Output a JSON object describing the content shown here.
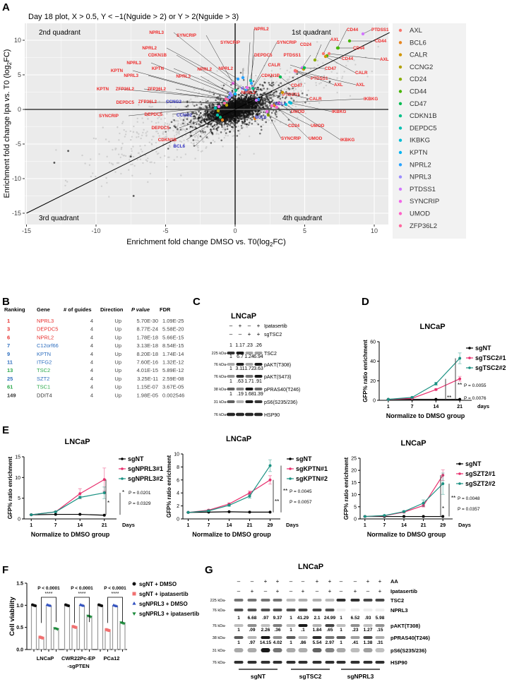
{
  "panel_labels": {
    "a": "A",
    "b": "B",
    "c": "C",
    "d": "D",
    "e": "E",
    "f": "F",
    "g": "G"
  },
  "panel_a": {
    "title": "Day 18 plot, X > 0.5, Y < −1(Nguide > 2) or Y > 2(Nguide > 3)",
    "quadrants": [
      "2nd quadrant",
      "1st quadrant",
      "3rd quadrant",
      "4th quadrant"
    ],
    "xlabel": {
      "main": "Enrichment fold change DMSO vs. T0(log",
      "sub": "2",
      "end": "FC)"
    },
    "ylabel": {
      "main": "Enrichment fold change Ipa vs. T0 (log",
      "sub": "2",
      "end": "FC)"
    },
    "xticks": [
      -15,
      -10,
      -5,
      0,
      5,
      10
    ],
    "yticks": [
      -15,
      -10,
      -5,
      0,
      5,
      10
    ],
    "xlim": [
      -15.1,
      11.1
    ],
    "ylim": [
      -16,
      13
    ],
    "label_colors": {
      "red": "#ee2a2a",
      "blue": "#3636c8"
    },
    "legend": [
      {
        "gene": "AXL",
        "color": "#F8766D"
      },
      {
        "gene": "BCL6",
        "color": "#E7851E"
      },
      {
        "gene": "CALR",
        "color": "#D09400"
      },
      {
        "gene": "CCNG2",
        "color": "#B2A100"
      },
      {
        "gene": "CD24",
        "color": "#89AC00"
      },
      {
        "gene": "CD44",
        "color": "#45B500"
      },
      {
        "gene": "CD47",
        "color": "#00BC51"
      },
      {
        "gene": "CDKN1B",
        "color": "#00C087"
      },
      {
        "gene": "DEPDC5",
        "color": "#00C0B2"
      },
      {
        "gene": "IKBKG",
        "color": "#00BCD6"
      },
      {
        "gene": "KPTN",
        "color": "#00B3F2"
      },
      {
        "gene": "NPRL2",
        "color": "#29A3FF"
      },
      {
        "gene": "NPRL3",
        "color": "#9C8DFF"
      },
      {
        "gene": "PTDSS1",
        "color": "#D277FF"
      },
      {
        "gene": "SYNCRIP",
        "color": "#F166E8"
      },
      {
        "gene": "UMOD",
        "color": "#FF61C7"
      },
      {
        "gene": "ZFP36L2",
        "color": "#FF689E"
      }
    ],
    "annotations": [
      {
        "gene": "NPRL3",
        "label": "red"
      },
      {
        "gene": "SYNCRIP",
        "label": "red"
      },
      {
        "gene": "NPRL2",
        "label": "red"
      },
      {
        "gene": "CDKN1B",
        "label": "red"
      },
      {
        "gene": "NPRL3",
        "label": "red"
      },
      {
        "gene": "KPTN",
        "label": "red"
      },
      {
        "gene": "NPRL2",
        "label": "red"
      },
      {
        "gene": "KPTN",
        "label": "red"
      },
      {
        "gene": "NPRL3",
        "label": "red"
      },
      {
        "gene": "NPRL3",
        "label": "red"
      },
      {
        "gene": "KPTN",
        "label": "red"
      },
      {
        "gene": "ZFP36L2",
        "label": "red"
      },
      {
        "gene": "ZFP36L2",
        "label": "red"
      },
      {
        "gene": "DEPDC5",
        "label": "red"
      },
      {
        "gene": "ZFP36L2",
        "label": "red"
      },
      {
        "gene": "CCNG2",
        "label": "blue"
      },
      {
        "gene": "SYNCRIP",
        "label": "red"
      },
      {
        "gene": "DEPDC5",
        "label": "red"
      },
      {
        "gene": "CCNG2",
        "label": "blue"
      },
      {
        "gene": "DEPDC5",
        "label": "red"
      },
      {
        "gene": "CDKN1B",
        "label": "red"
      },
      {
        "gene": "BCL6",
        "label": "blue"
      },
      {
        "gene": "NPRL2",
        "label": "red"
      },
      {
        "gene": "SYNCRIP",
        "label": "red"
      },
      {
        "gene": "SYNCRIP",
        "label": "red"
      },
      {
        "gene": "DEPDC5",
        "label": "red"
      },
      {
        "gene": "NPRL2",
        "label": "red"
      },
      {
        "gene": "CDKN1B",
        "label": "red"
      },
      {
        "gene": "CD24",
        "label": "red"
      },
      {
        "gene": "CD44",
        "label": "red"
      },
      {
        "gene": "PTDSS1",
        "label": "red"
      },
      {
        "gene": "CD44",
        "label": "red"
      },
      {
        "gene": "CD44",
        "label": "red"
      },
      {
        "gene": "AXL",
        "label": "red"
      },
      {
        "gene": "CD44",
        "label": "red"
      },
      {
        "gene": "AXL",
        "label": "red"
      },
      {
        "gene": "PTDSS1",
        "label": "red"
      },
      {
        "gene": "CALR",
        "label": "red"
      },
      {
        "gene": "CD47",
        "label": "red"
      },
      {
        "gene": "CALR",
        "label": "red"
      },
      {
        "gene": "PTDSS1",
        "label": "red"
      },
      {
        "gene": "CD47",
        "label": "red"
      },
      {
        "gene": "AXL",
        "label": "red"
      },
      {
        "gene": "AXL",
        "label": "red"
      },
      {
        "gene": "NPRL2",
        "label": "red"
      },
      {
        "gene": "PTDSS1",
        "label": "red"
      },
      {
        "gene": "CALR",
        "label": "red"
      },
      {
        "gene": "IKBKG",
        "label": "red"
      },
      {
        "gene": "UMOD",
        "label": "red"
      },
      {
        "gene": "IKBKG",
        "label": "red"
      },
      {
        "gene": "CD24",
        "label": "red"
      },
      {
        "gene": "UMOD",
        "label": "red"
      },
      {
        "gene": "BCL6",
        "label": "blue"
      },
      {
        "gene": "BCL6",
        "label": "blue"
      },
      {
        "gene": "SYNCRIP",
        "label": "red"
      },
      {
        "gene": "UMOD",
        "label": "red"
      },
      {
        "gene": "IKBKG",
        "label": "red"
      }
    ]
  },
  "panel_b": {
    "headers": [
      "Ranking",
      "Gene",
      "# of guides",
      "Direction",
      "P value",
      "FDR"
    ],
    "rows": [
      {
        "rank": "1",
        "gene": "NPRL3",
        "guides": "4",
        "direction": "Up",
        "p": "5.70E-30",
        "fdr": "1.09E-25",
        "color": "#e8302e"
      },
      {
        "rank": "3",
        "gene": "DEPDC5",
        "guides": "4",
        "direction": "Up",
        "p": "8.77E-24",
        "fdr": "5.58E-20",
        "color": "#e8302e"
      },
      {
        "rank": "6",
        "gene": "NPRL2",
        "guides": "4",
        "direction": "Up",
        "p": "1.78E-18",
        "fdr": "5.66E-15",
        "color": "#e8302e"
      },
      {
        "rank": "7",
        "gene": "C12orf66",
        "guides": "4",
        "direction": "Up",
        "p": "3.13E-18",
        "fdr": "8.54E-15",
        "color": "#2f6fbf"
      },
      {
        "rank": "9",
        "gene": "KPTN",
        "guides": "4",
        "direction": "Up",
        "p": "8.20E-18",
        "fdr": "1.74E-14",
        "color": "#2f6fbf"
      },
      {
        "rank": "11",
        "gene": "ITFG2",
        "guides": "4",
        "direction": "Up",
        "p": "7.60E-16",
        "fdr": "1.32E-12",
        "color": "#2f6fbf"
      },
      {
        "rank": "13",
        "gene": "TSC2",
        "guides": "4",
        "direction": "Up",
        "p": "4.01E-15",
        "fdr": "5.89E-12",
        "color": "#2aa84a"
      },
      {
        "rank": "25",
        "gene": "SZT2",
        "guides": "4",
        "direction": "Up",
        "p": "3.25E-11",
        "fdr": "2.59E-08",
        "color": "#2f6fbf"
      },
      {
        "rank": "61",
        "gene": "TSC1",
        "guides": "4",
        "direction": "Up",
        "p": "1.15E-07",
        "fdr": "3.67E-05",
        "color": "#2aa84a"
      },
      {
        "rank": "149",
        "gene": "DDIT4",
        "guides": "4",
        "direction": "Up",
        "p": "1.98E-05",
        "fdr": "0.002546",
        "color": "#333333"
      }
    ]
  },
  "panel_c": {
    "title": "LNCaP",
    "conditions": [
      {
        "label": "Ipatasertib",
        "signs": [
          "–",
          "+",
          "–",
          "+"
        ]
      },
      {
        "label": "sgTSC2",
        "signs": [
          "–",
          "–",
          "+",
          "+"
        ]
      }
    ],
    "blots": [
      {
        "label": "TSC2",
        "kda": "225 kDa-",
        "quant": [
          "1",
          "1.17",
          ".23",
          ".26"
        ]
      },
      {
        "label": "pAKT(T308)",
        "kda": "76 kDa-",
        "quant": [
          "1",
          "6.7",
          "1.24",
          "6.94"
        ]
      },
      {
        "label": "pAKT(S473)",
        "kda": "76 kDa-",
        "quant": [
          "1",
          "3.11",
          "1.72",
          "3.63"
        ]
      },
      {
        "label": "pPRAS40(T246)",
        "kda": "38 kDa-",
        "quant": [
          "1",
          ".63",
          "1.71",
          ".91"
        ]
      },
      {
        "label": "pS6(S235/236)",
        "kda": "31 kDa-",
        "quant": [
          "1",
          ".19",
          "1.68",
          "1.39"
        ]
      },
      {
        "label": "HSP90",
        "kda": "76 kDa-",
        "quant": null
      }
    ]
  },
  "panel_d": {
    "title": "LNCaP",
    "ylabel": "GFP% ratio enrichment",
    "xlabel": "Normalize to DMSO group",
    "days_label": "days",
    "x": [
      1,
      7,
      14,
      21
    ],
    "yticks": [
      0,
      20,
      40,
      60
    ],
    "ylim": [
      0,
      60
    ],
    "series": [
      {
        "name": "sgNT",
        "color": "#000000",
        "values": [
          1,
          1,
          1,
          1
        ],
        "errors": [
          0,
          0,
          0,
          0
        ]
      },
      {
        "name": "sgTSC2#1",
        "color": "#e8306e",
        "values": [
          1,
          2,
          11,
          22
        ],
        "errors": [
          0.2,
          0.3,
          0.8,
          2.5
        ]
      },
      {
        "name": "sgTSC2#2",
        "color": "#1a9182",
        "values": [
          1,
          3,
          17,
          43
        ],
        "errors": [
          0.2,
          0.5,
          1.5,
          5.5
        ]
      }
    ],
    "stats": [
      {
        "stars": "**",
        "p": "P = 0.0055"
      },
      {
        "stars": "**",
        "p": "P = 0.0076"
      }
    ]
  },
  "panel_e": [
    {
      "title": "LNCaP",
      "ylabel": "GFP% ratio enrichment",
      "xlabel": "Normalize to DMSO group",
      "days_label": "Days",
      "x": [
        1,
        7,
        14,
        21
      ],
      "yticks": [
        0,
        5,
        10,
        15
      ],
      "ylim": [
        0,
        15
      ],
      "series": [
        {
          "name": "sgNT",
          "color": "#000000",
          "values": [
            1,
            1.1,
            1.1,
            0.9
          ],
          "errors": [
            0,
            0,
            0,
            0
          ]
        },
        {
          "name": "sgNPRL3#1",
          "color": "#e8306e",
          "values": [
            1,
            1.7,
            6.1,
            9.5
          ],
          "errors": [
            0.1,
            0.1,
            1.2,
            2.8
          ]
        },
        {
          "name": "sgNPRL3#2",
          "color": "#1a9182",
          "values": [
            1,
            1.7,
            5.2,
            6.3
          ],
          "errors": [
            0.1,
            0.1,
            0.3,
            1.4
          ]
        }
      ],
      "stats": [
        {
          "stars": "*",
          "p": "P = 0.0201"
        },
        {
          "stars": "*",
          "p": "P = 0.0329"
        }
      ]
    },
    {
      "title": "LNCaP",
      "ylabel": "GFP% ratio enrichment",
      "xlabel": "Normalize to DMSO group",
      "days_label": "Days",
      "x": [
        1,
        7,
        14,
        21,
        29
      ],
      "yticks": [
        0,
        2,
        4,
        6,
        8,
        10
      ],
      "ylim": [
        0,
        10
      ],
      "series": [
        {
          "name": "sgNT",
          "color": "#000000",
          "values": [
            1,
            1.05,
            1.1,
            1.05,
            1.05
          ],
          "errors": [
            0,
            0,
            0,
            0,
            0
          ]
        },
        {
          "name": "sgKPTN#1",
          "color": "#e8306e",
          "values": [
            1,
            1.35,
            2.3,
            4,
            6
          ],
          "errors": [
            0.05,
            0.1,
            0.15,
            0.3,
            0.65
          ]
        },
        {
          "name": "sgKPTN#2",
          "color": "#1a9182",
          "values": [
            1,
            1.25,
            2.1,
            3.5,
            8.2
          ],
          "errors": [
            0.05,
            0.1,
            0.15,
            0.3,
            0.9
          ]
        }
      ],
      "stats": [
        {
          "stars": "**",
          "p": "P = 0.0045"
        },
        {
          "stars": "**",
          "p": "P = 0.0057"
        }
      ]
    },
    {
      "title": "LNCaP",
      "ylabel": "GFP% ratio enrichment",
      "xlabel": "Normalize to DMSO group",
      "days_label": "Days",
      "x": [
        1,
        7,
        14,
        21,
        29
      ],
      "yticks": [
        0,
        5,
        10,
        15,
        20,
        25
      ],
      "ylim": [
        0,
        25
      ],
      "series": [
        {
          "name": "sgNT",
          "color": "#000000",
          "values": [
            1,
            1,
            1,
            1,
            1
          ],
          "errors": [
            0,
            0,
            0,
            0,
            0
          ]
        },
        {
          "name": "sgSZT2#1",
          "color": "#e8306e",
          "values": [
            1,
            1.3,
            2.8,
            5.5,
            18
          ],
          "errors": [
            0.1,
            0.1,
            0.3,
            0.6,
            2.2
          ]
        },
        {
          "name": "sgSZT2#2",
          "color": "#1a9182",
          "values": [
            1,
            1.4,
            3,
            6.5,
            14.5
          ],
          "errors": [
            0.1,
            0.1,
            0.4,
            1.3,
            4.4
          ]
        }
      ],
      "stats": [
        {
          "stars": "**",
          "p": "P = 0.0048"
        },
        {
          "stars": "*",
          "p": "P = 0.0357"
        }
      ]
    }
  ],
  "chart_data": {
    "type": "bar",
    "ylabel": "Cell viability",
    "ylim": [
      0,
      1.5
    ],
    "yticks": [
      "0.0",
      "0.5",
      "1.0",
      "1.5"
    ],
    "categories": [
      [
        "LNCaP"
      ],
      [
        "CWR22Pc-EP",
        "-sgPTEN"
      ],
      [
        "PCa12"
      ]
    ],
    "series": [
      {
        "name": "sgNT + DMSO",
        "color": "#111111",
        "marker": "circle",
        "values": [
          1.0,
          1.0,
          1.0
        ]
      },
      {
        "name": "sgNT + ipatasertib",
        "color": "#f07070",
        "marker": "square",
        "values": [
          0.27,
          0.51,
          0.44
        ]
      },
      {
        "name": "sgNPRL3 + DMSO",
        "color": "#3050c0",
        "marker": "triangle",
        "values": [
          1.0,
          1.0,
          0.99
        ]
      },
      {
        "name": "sgNPRL3 + ipatasertib",
        "color": "#1a8a3a",
        "marker": "triangle-down",
        "values": [
          0.47,
          0.75,
          0.6
        ]
      }
    ],
    "annotations": [
      {
        "p": "P < 0.0001",
        "stars": "****"
      },
      {
        "p": "P < 0.0001",
        "stars": "****"
      },
      {
        "p": "P < 0.0001",
        "stars": "****"
      }
    ],
    "legend": "right"
  },
  "panel_g": {
    "title": "LNCaP",
    "conditions": [
      {
        "label": "AA",
        "signs": [
          "–",
          "–",
          "+",
          "+",
          "–",
          "–",
          "+",
          "+",
          "–",
          "–",
          "+",
          "+"
        ]
      },
      {
        "label": "Ipatasertib",
        "signs": [
          "–",
          "+",
          "–",
          "+",
          "–",
          "+",
          "–",
          "+",
          "–",
          "+",
          "–",
          "+"
        ]
      }
    ],
    "blots": [
      {
        "label": "TSC2",
        "kda": "225 kDa-",
        "quant": null
      },
      {
        "label": "NPRL3",
        "kda": "76 kDa-",
        "quant": null
      },
      {
        "label": "pAKT(T308)",
        "kda": "76 kDa-",
        "quant": [
          "1",
          "6.68",
          ".97",
          "9.37",
          "1",
          "41.29",
          "2.1",
          "24.99",
          "1",
          "6.52",
          ".93",
          "5.98"
        ]
      },
      {
        "label": "pPRAS40(T246)",
        "kda": "38 kDa-",
        "quant": [
          "1",
          ".09",
          "2.26",
          ".36",
          "1",
          ".1",
          "1.84",
          ".65",
          "1",
          ".23",
          "1.27",
          ".15"
        ]
      },
      {
        "label": "pS6(S235/236)",
        "kda": "31 kDa-",
        "quant": [
          "1",
          ".97",
          "14.15",
          "4.02",
          "1",
          ".86",
          "5.54",
          "2.97",
          "1",
          ".41",
          "1.38",
          ".31"
        ]
      },
      {
        "label": "HSP90",
        "kda": "76 kDa-",
        "quant": null
      }
    ],
    "groups": [
      "sgNT",
      "sgTSC2",
      "sgNPRL3"
    ]
  }
}
